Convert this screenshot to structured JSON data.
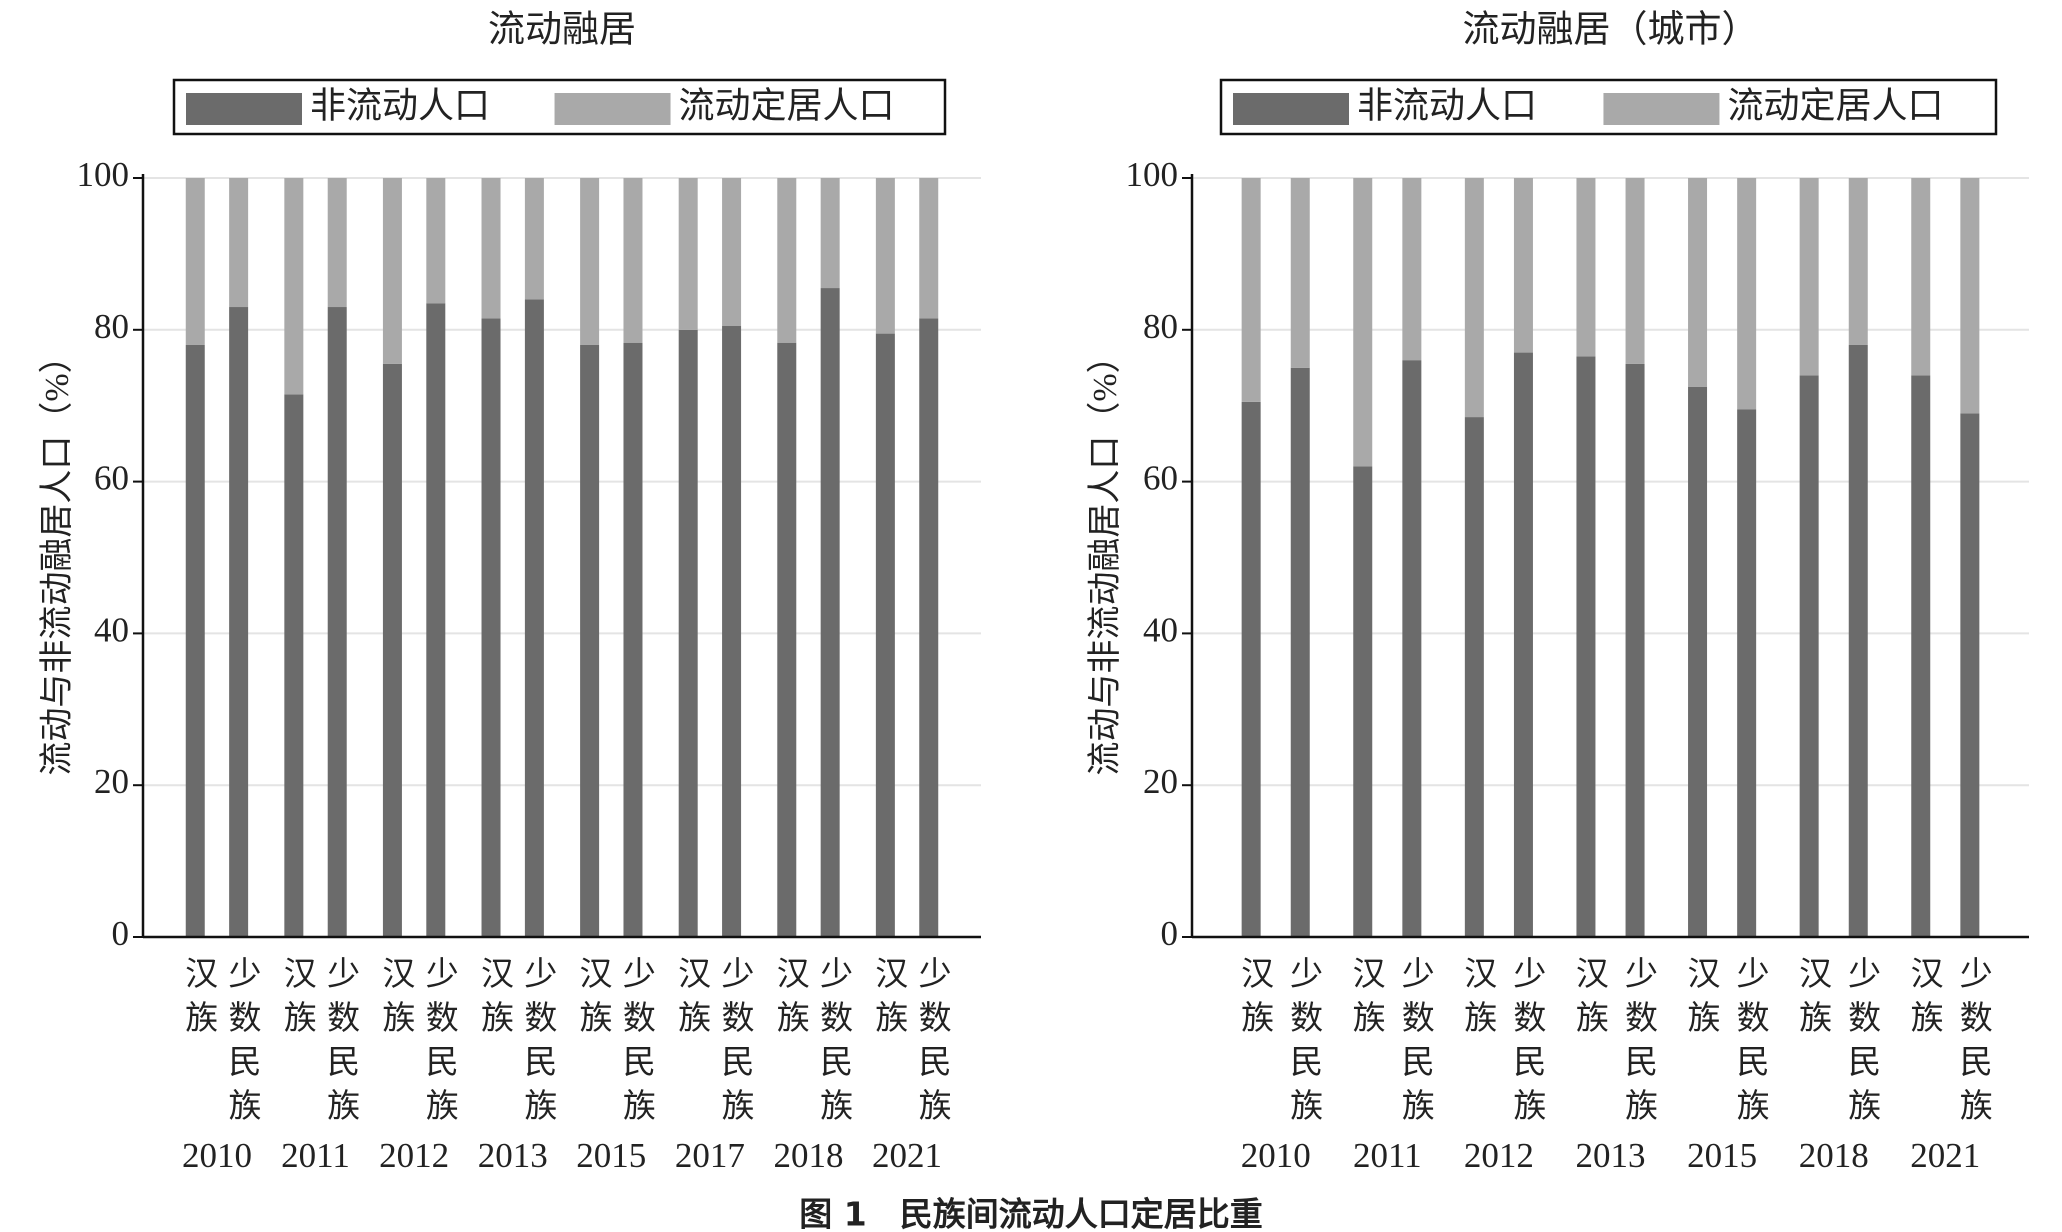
{
  "caption": "图 1　民族间流动人口定居比重",
  "chart_data": [
    {
      "type": "bar",
      "stacked": true,
      "title": "流动融居",
      "y_label": "流动与非流动融居人口（%）",
      "groups": [
        "2010",
        "2011",
        "2012",
        "2013",
        "2015",
        "2017",
        "2018",
        "2021"
      ],
      "categories": [
        "汉族",
        "少数民族",
        "汉族",
        "少数民族",
        "汉族",
        "少数民族",
        "汉族",
        "少数民族",
        "汉族",
        "少数民族",
        "汉族",
        "少数民族",
        "汉族",
        "少数民族",
        "汉族",
        "少数民族"
      ],
      "series": [
        {
          "name": "非流动人口",
          "color": "#6b6b6b",
          "values": [
            78,
            83,
            71.5,
            83,
            75.5,
            83.5,
            81.5,
            84,
            78,
            78.3,
            80,
            80.5,
            78.3,
            85.5,
            79.5,
            81.5
          ]
        },
        {
          "name": "流动定居人口",
          "color": "#a9a9a9",
          "values": [
            22,
            17,
            28.5,
            17,
            24.5,
            16.5,
            18.5,
            16,
            22,
            21.7,
            20,
            19.5,
            21.7,
            14.5,
            20.5,
            18.5
          ]
        }
      ],
      "ylim": [
        0,
        100
      ],
      "yticks": [
        0,
        20,
        40,
        60,
        80,
        100
      ],
      "grid": true
    },
    {
      "type": "bar",
      "stacked": true,
      "title": "流动融居（城市）",
      "y_label": "流动与非流动融居人口（%）",
      "groups": [
        "2010",
        "2011",
        "2012",
        "2013",
        "2015",
        "2018",
        "2021"
      ],
      "categories": [
        "汉族",
        "少数民族",
        "汉族",
        "少数民族",
        "汉族",
        "少数民族",
        "汉族",
        "少数民族",
        "汉族",
        "少数民族",
        "汉族",
        "少数民族",
        "汉族",
        "少数民族"
      ],
      "series": [
        {
          "name": "非流动人口",
          "color": "#6b6b6b",
          "values": [
            70.5,
            75,
            62,
            76,
            68.5,
            77,
            76.5,
            75.5,
            72.5,
            69.5,
            74,
            78,
            74,
            69
          ]
        },
        {
          "name": "流动定居人口",
          "color": "#a9a9a9",
          "values": [
            29.5,
            25,
            38,
            24,
            31.5,
            23,
            23.5,
            24.5,
            27.5,
            30.5,
            26,
            22,
            26,
            31
          ]
        }
      ],
      "ylim": [
        0,
        100
      ],
      "yticks": [
        0,
        20,
        40,
        60,
        80,
        100
      ],
      "grid": true
    }
  ]
}
